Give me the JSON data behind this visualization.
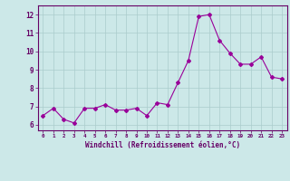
{
  "x": [
    0,
    1,
    2,
    3,
    4,
    5,
    6,
    7,
    8,
    9,
    10,
    11,
    12,
    13,
    14,
    15,
    16,
    17,
    18,
    19,
    20,
    21,
    22,
    23
  ],
  "y": [
    6.5,
    6.9,
    6.3,
    6.1,
    6.9,
    6.9,
    7.1,
    6.8,
    6.8,
    6.9,
    6.5,
    7.2,
    7.1,
    8.3,
    9.5,
    11.9,
    12.0,
    10.6,
    9.9,
    9.3,
    9.3,
    9.7,
    8.6,
    8.5
  ],
  "line_color": "#990099",
  "marker": "D",
  "marker_size": 2,
  "bg_color": "#cce8e8",
  "grid_color": "#aacccc",
  "axis_color": "#660066",
  "xlabel": "Windchill (Refroidissement éolien,°C)",
  "ylabel_ticks": [
    6,
    7,
    8,
    9,
    10,
    11,
    12
  ],
  "xlim": [
    -0.5,
    23.5
  ],
  "ylim": [
    5.7,
    12.5
  ],
  "font_color": "#660066"
}
